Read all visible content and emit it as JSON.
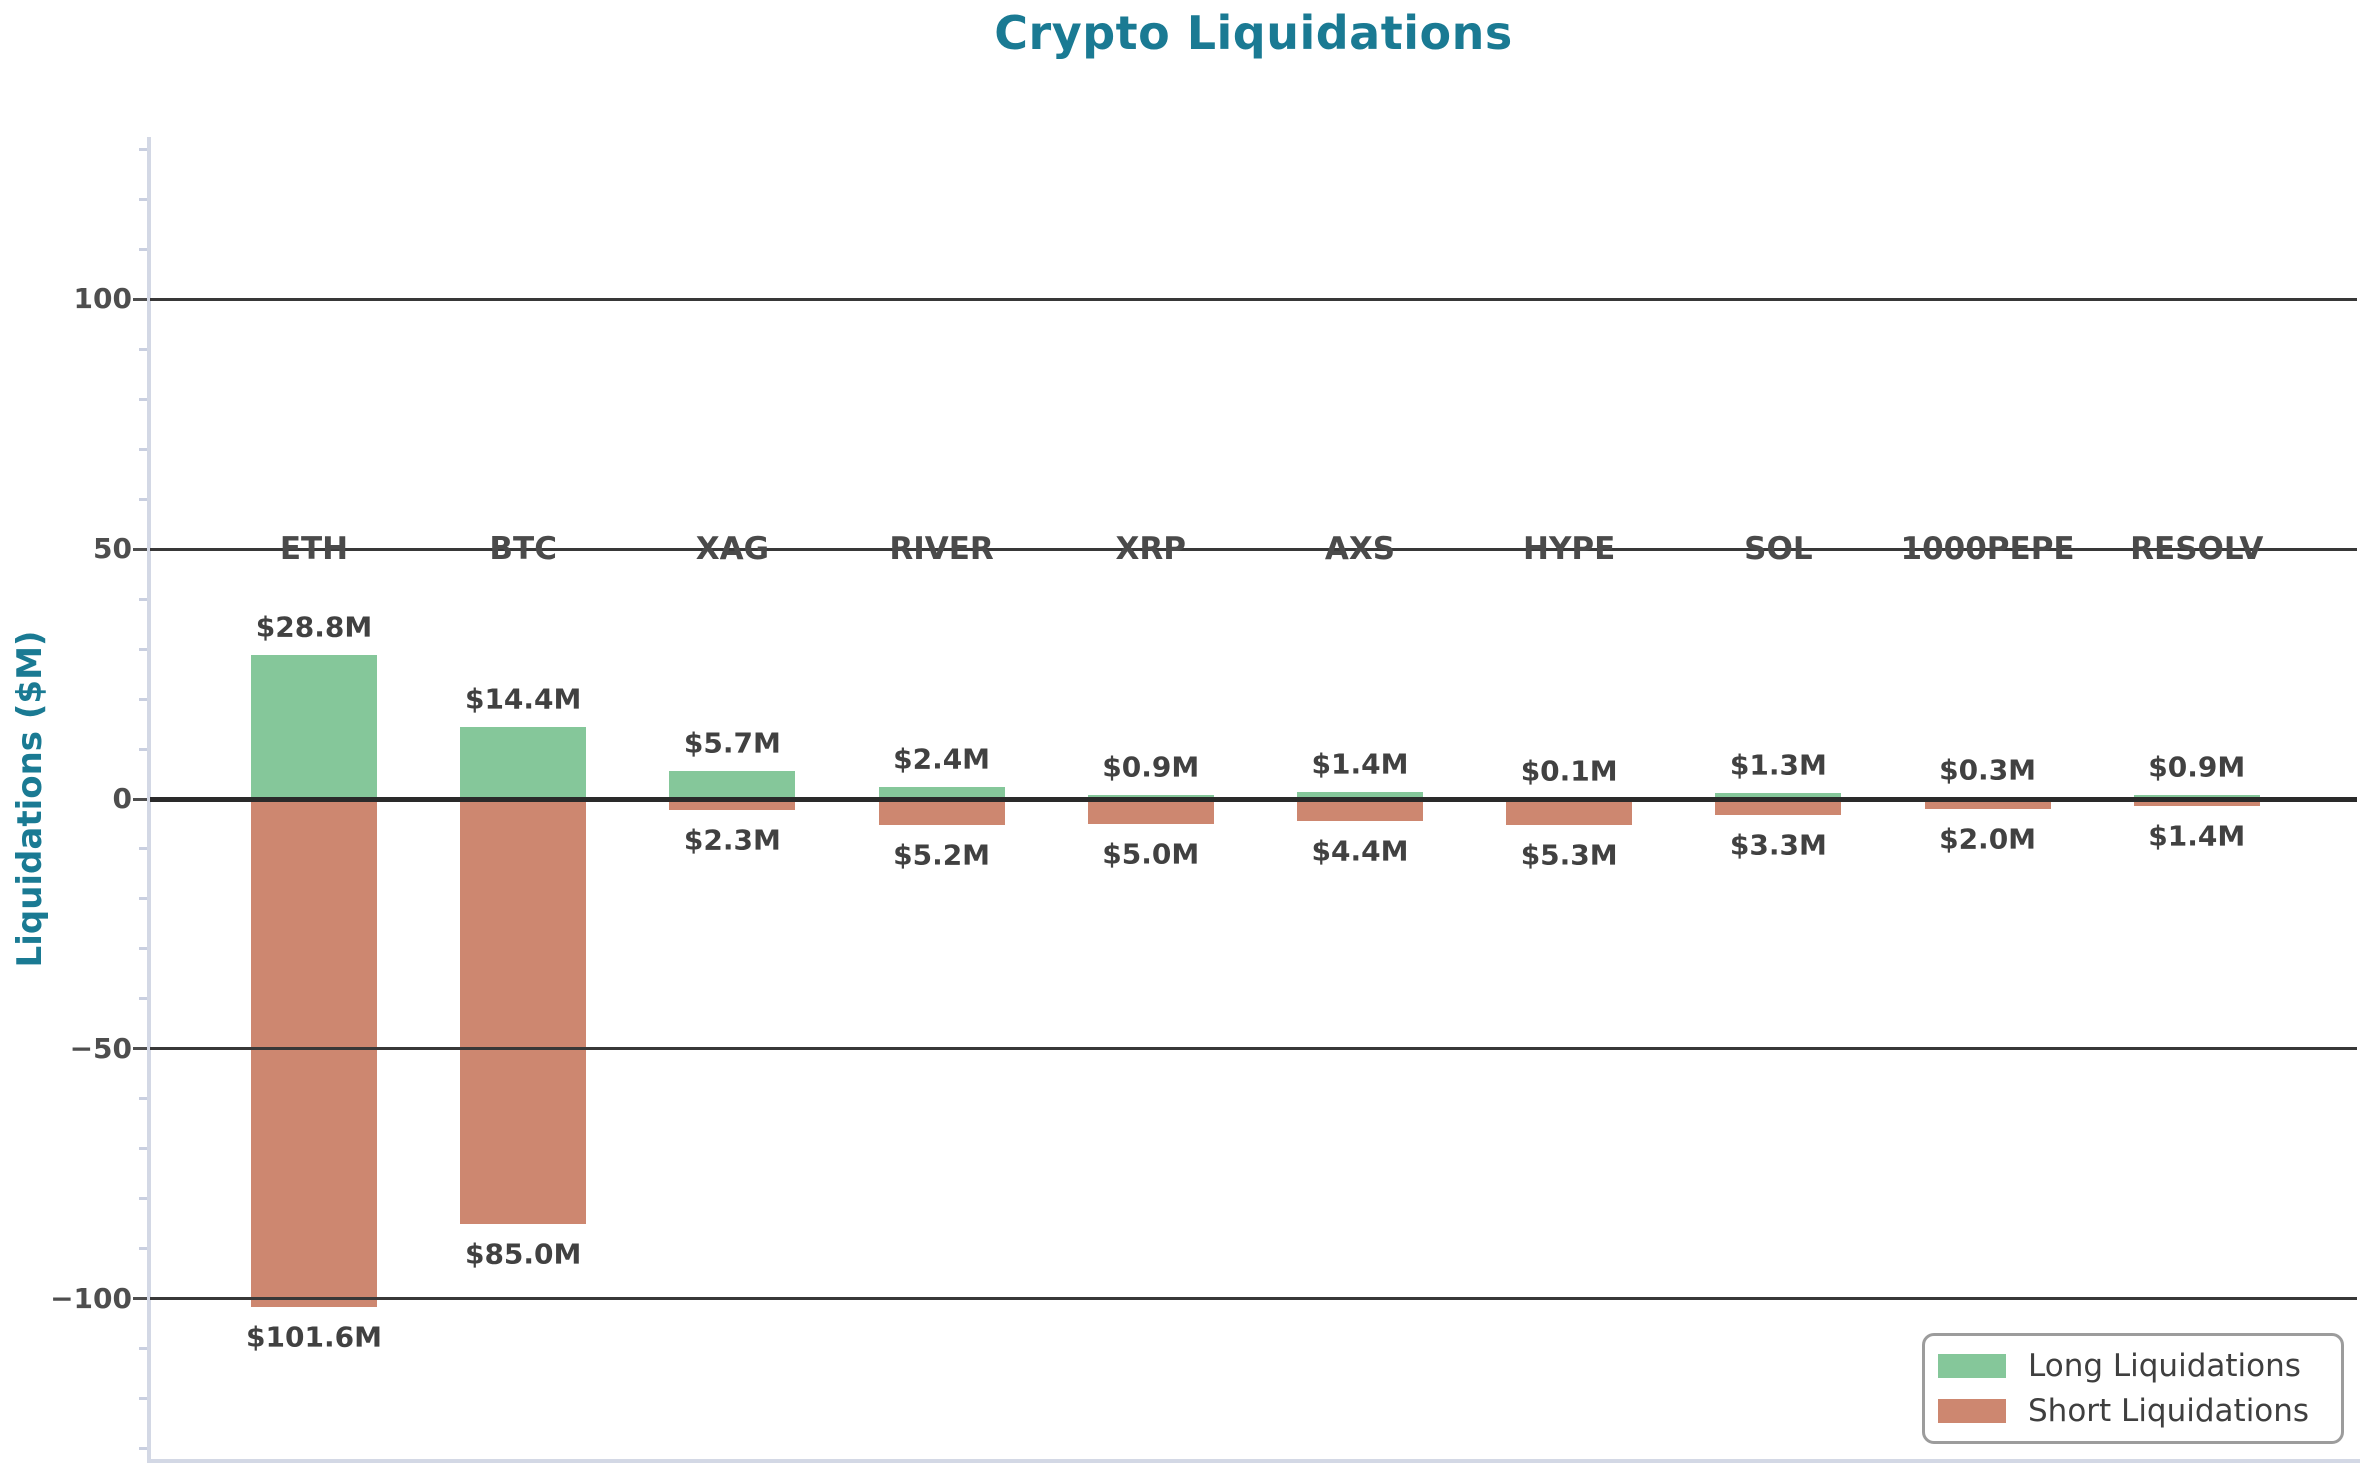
{
  "title": "Crypto Liquidations",
  "colors": {
    "accent_teal": "#1a7a93",
    "long_green": "#85c79a",
    "short_red": "#cd8770",
    "grid_dark": "#383838",
    "zero_line": "#2a2a2a",
    "spine_light": "#d3d8e5",
    "minor_tick": "#c9cfe0",
    "tick_text": "#4e4e4e",
    "category_text": "#4a4a4a",
    "value_text": "#414141",
    "legend_text": "#3f3f3f",
    "legend_border": "#9c9c9c",
    "background": "#ffffff"
  },
  "legend": {
    "position": "lower right",
    "items": [
      {
        "label": "Long Liquidations"
      },
      {
        "label": "Short Liquidations"
      }
    ]
  },
  "chart_data": {
    "type": "bar",
    "title": "Crypto Liquidations",
    "xlabel": "",
    "ylabel": "Liquidations ($M)",
    "categories": [
      "ETH",
      "BTC",
      "XAG",
      "RIVER",
      "XRP",
      "AXS",
      "HYPE",
      "SOL",
      "1000PEPE",
      "RESOLV"
    ],
    "series": [
      {
        "name": "Long Liquidations",
        "color": "#85c79a",
        "direction": "up",
        "values": [
          28.8,
          14.4,
          5.7,
          2.4,
          0.9,
          1.4,
          0.1,
          1.3,
          0.3,
          0.9
        ],
        "labels": [
          "$28.8M",
          "$14.4M",
          "$5.7M",
          "$2.4M",
          "$0.9M",
          "$1.4M",
          "$0.1M",
          "$1.3M",
          "$0.3M",
          "$0.9M"
        ]
      },
      {
        "name": "Short Liquidations",
        "color": "#cd8770",
        "direction": "down",
        "note": "plotted as negative values below the zero line",
        "values": [
          101.6,
          85.0,
          2.3,
          5.2,
          5.0,
          4.4,
          5.3,
          3.3,
          2.0,
          1.4
        ],
        "labels": [
          "$101.6M",
          "$85.0M",
          "$2.3M",
          "$5.2M",
          "$5.0M",
          "$4.4M",
          "$5.3M",
          "$3.3M",
          "$2.0M",
          "$1.4M"
        ]
      }
    ],
    "ylim": [
      -132.5,
      132.5
    ],
    "yticks": [
      100,
      50,
      0,
      -50,
      -100
    ],
    "ytick_labels": [
      "100",
      "50",
      "0",
      "−50",
      "−100"
    ],
    "minor_tick_step": 10,
    "grid": "horizontal lines at major y ticks, drawn over bars",
    "category_label_y_value": 50,
    "legend_position": "lower right"
  }
}
